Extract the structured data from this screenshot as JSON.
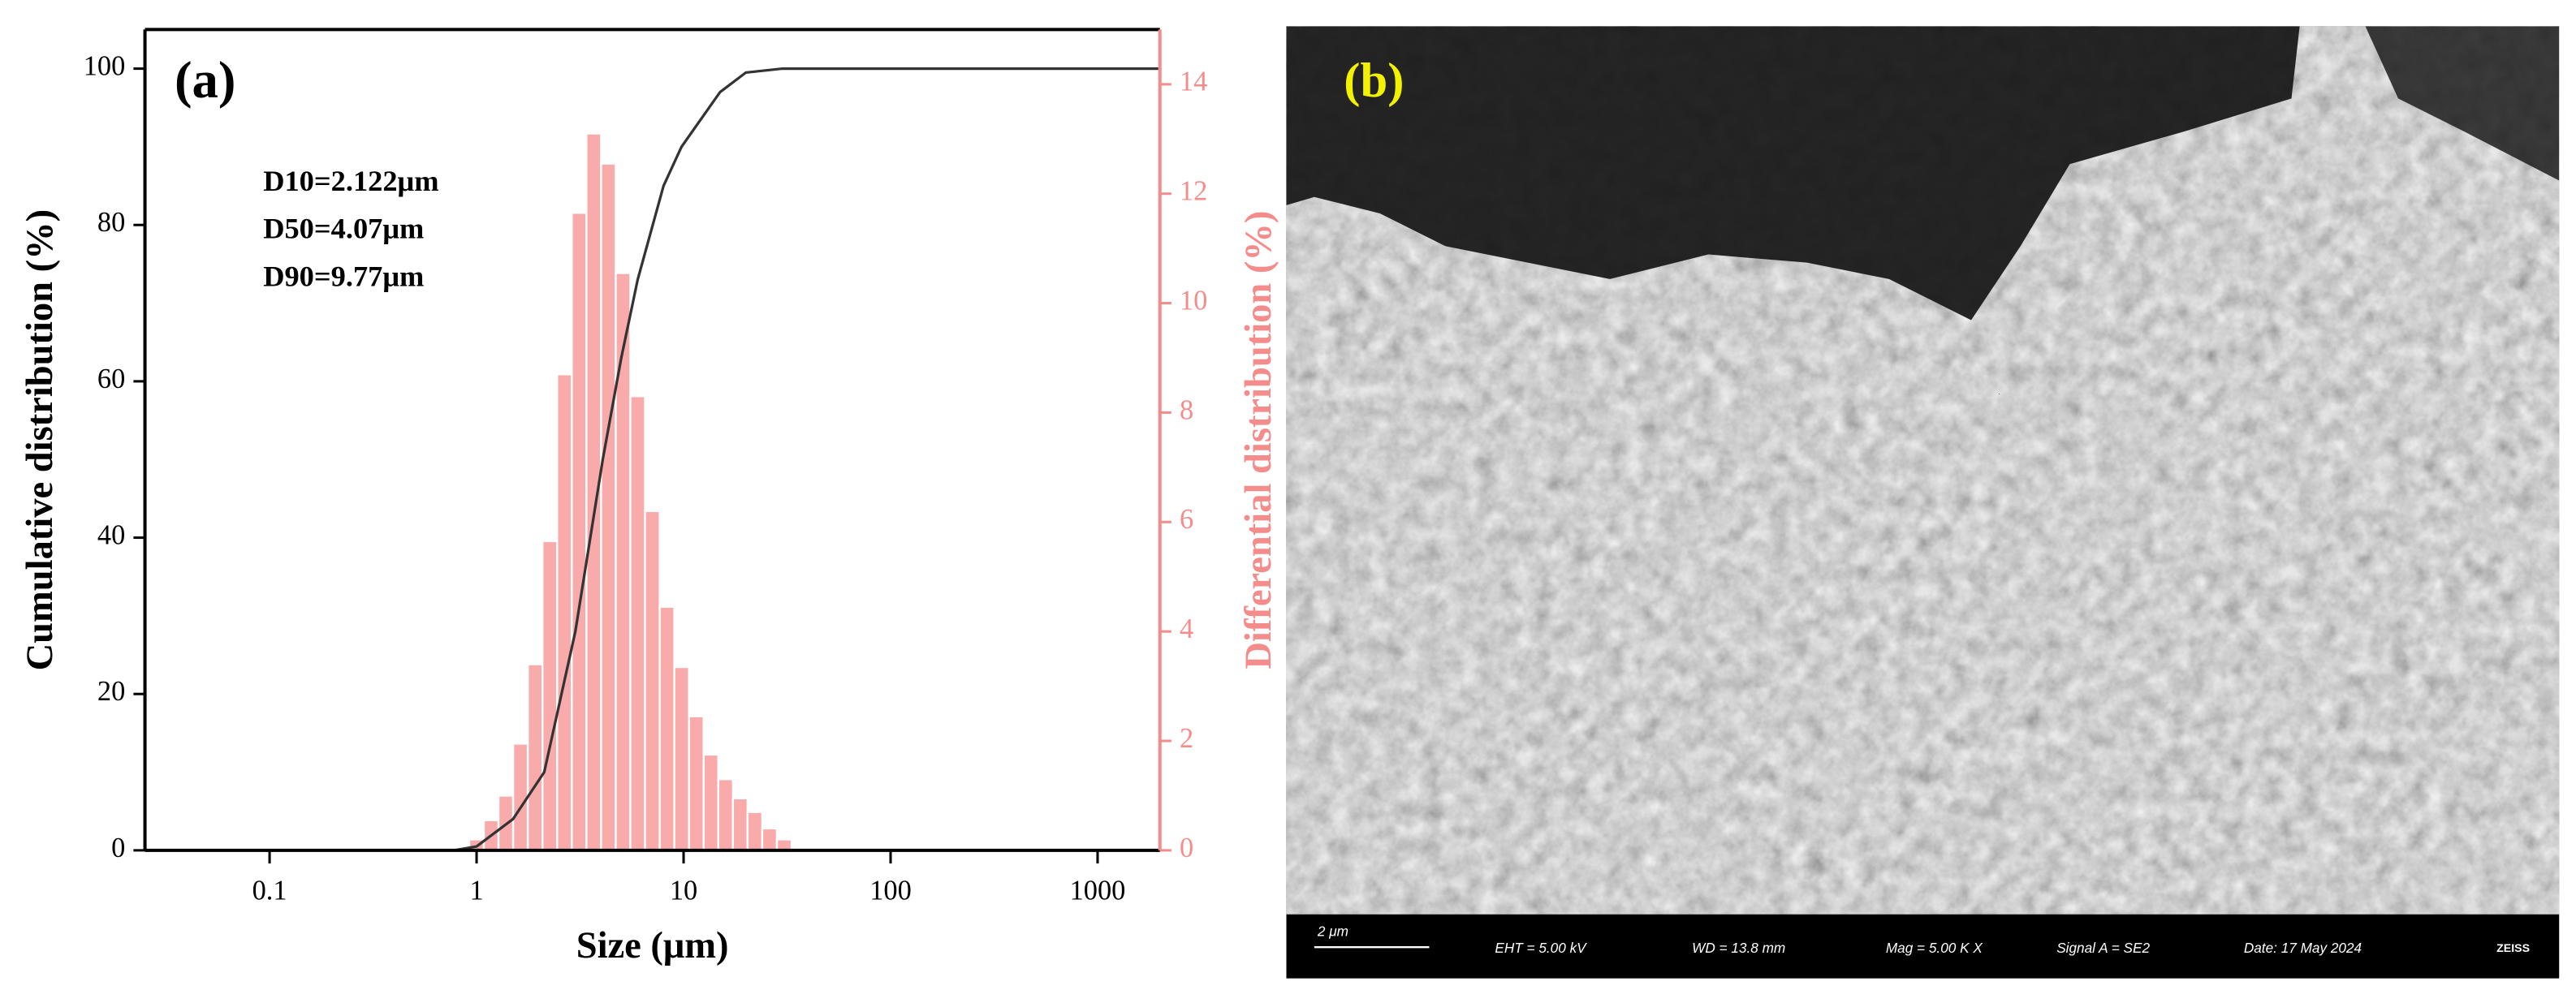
{
  "chart_data": {
    "type": "histogram",
    "xlabel": "Size (μm)",
    "ylabel": "Cumulative distribution (%)",
    "y2label": "Differential distribution (%)",
    "xscale": "log",
    "xlim": [
      0.025,
      2000
    ],
    "ylim": [
      0,
      105
    ],
    "y2lim": [
      0,
      15
    ],
    "xticks": [
      0.1,
      1,
      10,
      100,
      1000
    ],
    "yticks": [
      0,
      20,
      40,
      60,
      80,
      100
    ],
    "y2ticks": [
      0,
      2,
      4,
      6,
      8,
      10,
      12,
      14
    ],
    "y2color": "#f48c8c",
    "series": [
      {
        "type": "histogram",
        "axis": "y2",
        "color": "#f9aaaa",
        "bins": [
          0.921,
          1.084,
          1.276,
          1.502,
          1.768,
          2.081,
          2.449,
          2.883,
          3.393,
          3.994,
          4.701,
          5.533,
          6.513,
          7.666,
          9.023,
          10.62,
          12.5,
          14.71,
          17.32,
          20.38,
          23.99,
          28.24,
          33.24
        ],
        "values": [
          0.2,
          0.55,
          1.0,
          1.95,
          3.4,
          5.65,
          8.7,
          11.65,
          13.1,
          12.55,
          10.55,
          8.3,
          6.2,
          4.45,
          3.35,
          2.45,
          1.75,
          1.3,
          0.95,
          0.7,
          0.4,
          0.2
        ]
      },
      {
        "type": "line",
        "color": "#333333",
        "x": [
          0.78,
          1,
          1.5,
          2.122,
          3,
          4.07,
          5,
          6,
          8,
          9.77,
          15,
          20,
          30,
          2000
        ],
        "values": [
          0,
          0.5,
          4,
          10,
          28,
          50,
          63,
          73,
          85,
          90,
          97,
          99.5,
          100,
          100
        ]
      }
    ],
    "annotations": [
      "(a)",
      "D10=2.122μm",
      "D50=4.07μm",
      "D90=9.77μm"
    ]
  },
  "sem_image": {
    "label": "(b)",
    "footer": [
      "2 μm",
      "EHT =  5.00 kV",
      "WD = 13.8 mm",
      "Mag =   5.00 K X",
      "Signal A = SE2",
      "Date: 17 May 2024",
      "ZEISS"
    ]
  }
}
